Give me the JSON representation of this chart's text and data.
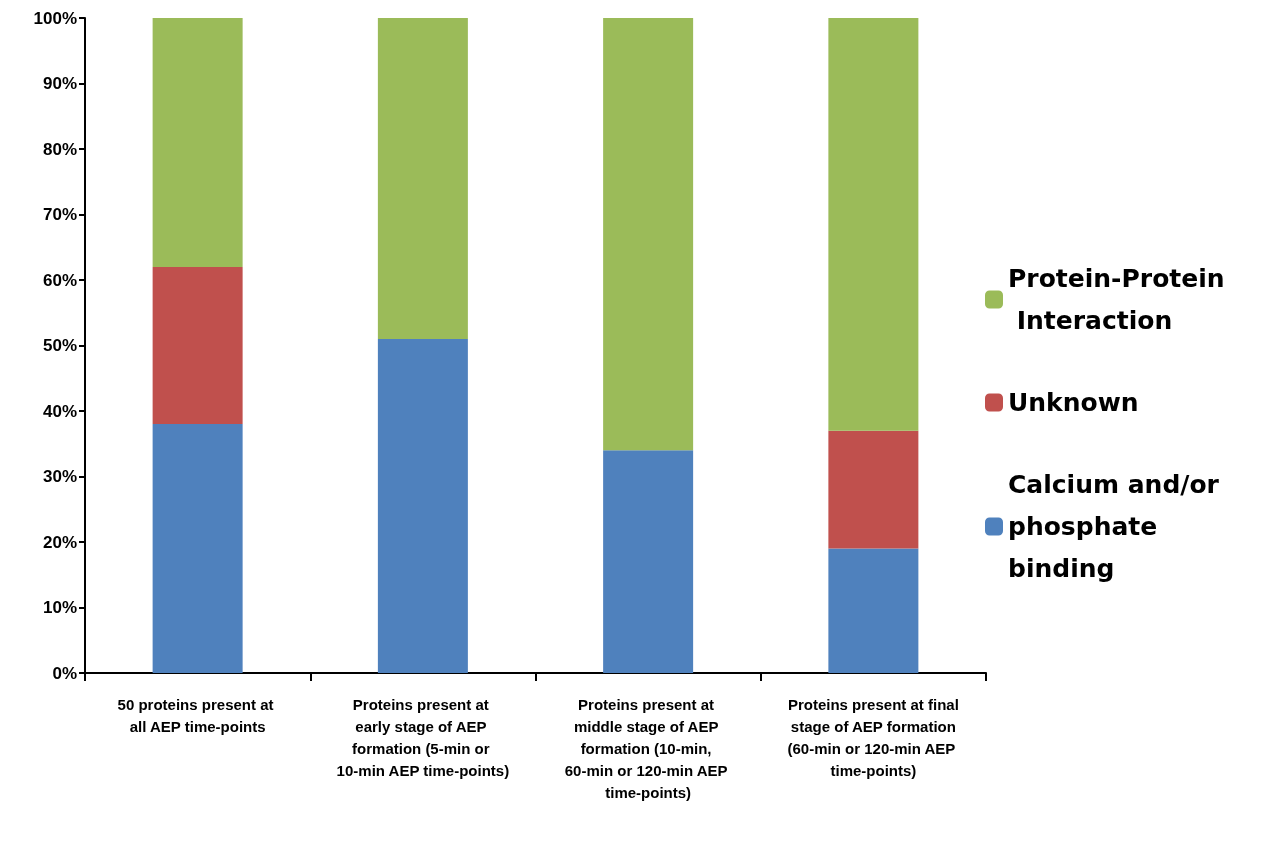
{
  "chart_data": {
    "type": "bar",
    "stacked": true,
    "categories": [
      "50 proteins present at all AEP time-points",
      "Proteins present at early stage of AEP formation (5-min or 10-min AEP time-points)",
      "Proteins present at middle stage of AEP formation (10-min, 60-min or 120-min AEP time-points)",
      "Proteins present at final stage of AEP formation (60-min or 120-min AEP time-points)"
    ],
    "series": [
      {
        "name": "Calcium and/or phosphate binding",
        "color": "#4f81bd",
        "values": [
          38,
          51,
          34,
          19
        ]
      },
      {
        "name": "Unknown",
        "color": "#c0504d",
        "values": [
          24,
          0,
          0,
          18
        ]
      },
      {
        "name": "Protein-Protein Interaction",
        "color": "#9bbb59",
        "values": [
          38,
          49,
          66,
          63
        ]
      }
    ],
    "ylim": [
      0,
      100
    ],
    "yticks": [
      {
        "value": 0,
        "label": "0%"
      },
      {
        "value": 10,
        "label": "10%"
      },
      {
        "value": 20,
        "label": "20%"
      },
      {
        "value": 30,
        "label": "30%"
      },
      {
        "value": 40,
        "label": "40%"
      },
      {
        "value": 50,
        "label": "50%"
      },
      {
        "value": 60,
        "label": "60%"
      },
      {
        "value": 70,
        "label": "70%"
      },
      {
        "value": 80,
        "label": "80%"
      },
      {
        "value": 90,
        "label": "90%"
      },
      {
        "value": 100,
        "label": "100%"
      }
    ],
    "grid": false,
    "legend": "right"
  }
}
